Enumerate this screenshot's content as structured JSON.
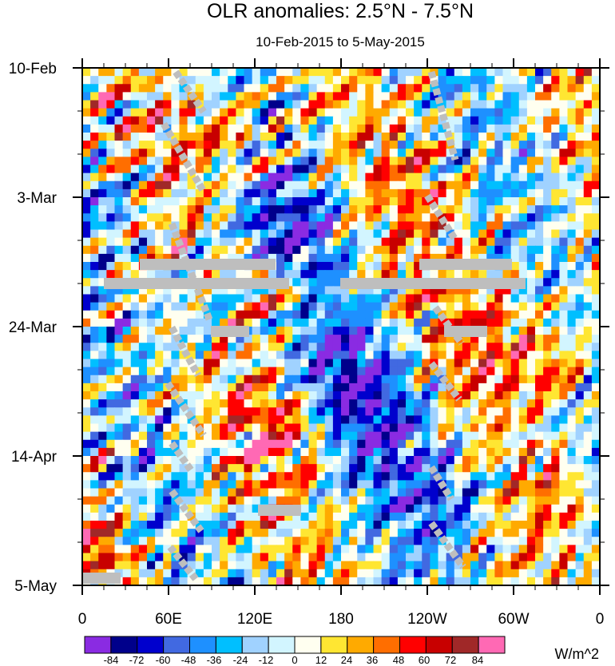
{
  "chart_data": {
    "type": "heatmap",
    "title": "OLR anomalies: 2.5°N - 7.5°N",
    "subtitle": "10-Feb-2015 to 5-May-2015",
    "x_ticks": [
      "0",
      "60E",
      "120E",
      "180",
      "120W",
      "60W",
      "0"
    ],
    "y_ticks": [
      "10-Feb",
      "3-Mar",
      "24-Mar",
      "14-Apr",
      "5-May"
    ],
    "colorbar": {
      "levels": [
        "-84",
        "-72",
        "-60",
        "-48",
        "-36",
        "-24",
        "-12",
        "0",
        "12",
        "24",
        "36",
        "48",
        "60",
        "72",
        "84"
      ],
      "colors": [
        "#8a2be2",
        "#00008b",
        "#0000cd",
        "#4169e1",
        "#1e90ff",
        "#00bfff",
        "#a0d2ff",
        "#d2f5ff",
        "#fffff0",
        "#ffe632",
        "#ffaa00",
        "#ff6e00",
        "#ff0000",
        "#c80000",
        "#a02828",
        "#ff69b4"
      ],
      "units": "W/m^2"
    },
    "missing_color": "#bebebe"
  }
}
